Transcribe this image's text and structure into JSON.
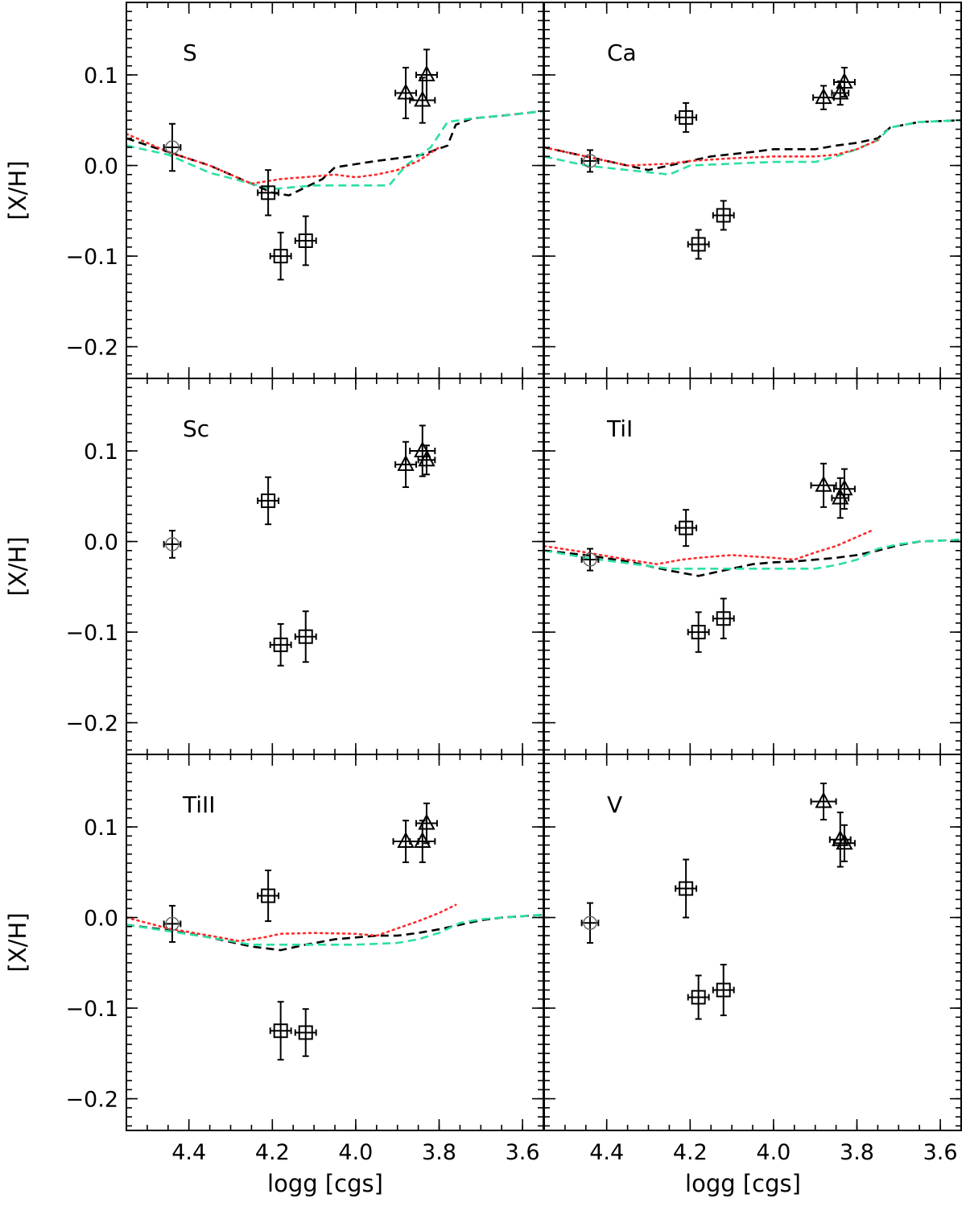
{
  "chart_data": {
    "type": "scatter",
    "xlabel": "logg [cgs]",
    "ylabel": "[X/H]",
    "xlim": [
      4.55,
      3.55
    ],
    "ylim": [
      -0.235,
      0.18
    ],
    "xticks": [
      4.4,
      4.2,
      4.0,
      3.8,
      3.6
    ],
    "xtick_labels": [
      "4.4",
      "4.2",
      "4.0",
      "3.8",
      "3.6"
    ],
    "yticks": [
      0.1,
      0.0,
      -0.1,
      -0.2
    ],
    "ytick_labels": [
      "0.1",
      "0.0",
      "−0.1",
      "−0.2"
    ],
    "line_colors": [
      "#000000",
      "#2be0a0",
      "#ff2a2a"
    ],
    "panels": [
      {
        "label": "S",
        "points": [
          {
            "marker": "circle",
            "x": 4.44,
            "y": 0.02,
            "xerr": 0.02,
            "yerr": 0.026
          },
          {
            "marker": "square",
            "x": 4.21,
            "y": -0.03,
            "xerr": 0.025,
            "yerr": 0.025
          },
          {
            "marker": "square",
            "x": 4.18,
            "y": -0.1,
            "xerr": 0.025,
            "yerr": 0.026
          },
          {
            "marker": "square",
            "x": 4.12,
            "y": -0.083,
            "xerr": 0.025,
            "yerr": 0.027
          },
          {
            "marker": "triangle",
            "x": 3.88,
            "y": 0.08,
            "xerr": 0.025,
            "yerr": 0.028
          },
          {
            "marker": "triangle",
            "x": 3.84,
            "y": 0.072,
            "xerr": 0.03,
            "yerr": 0.025
          },
          {
            "marker": "triangle",
            "x": 3.83,
            "y": 0.1,
            "xerr": 0.025,
            "yerr": 0.028
          }
        ],
        "curves": [
          {
            "style": "dashed",
            "color": "#000000",
            "x": [
              4.55,
              4.45,
              4.35,
              4.25,
              4.2,
              4.16,
              4.08,
              4.05,
              3.95,
              3.9,
              3.84,
              3.78,
              3.76,
              3.72,
              3.65,
              3.55
            ],
            "y": [
              0.03,
              0.015,
              0.0,
              -0.02,
              -0.03,
              -0.033,
              -0.015,
              -0.002,
              0.005,
              0.008,
              0.012,
              0.022,
              0.045,
              0.052,
              0.055,
              0.06
            ]
          },
          {
            "style": "dashed",
            "color": "#2be0a0",
            "x": [
              4.55,
              4.45,
              4.35,
              4.25,
              4.2,
              4.1,
              4.0,
              3.92,
              3.88,
              3.82,
              3.78,
              3.72,
              3.65,
              3.55
            ],
            "y": [
              0.022,
              0.012,
              -0.008,
              -0.02,
              -0.026,
              -0.022,
              -0.022,
              -0.022,
              0.0,
              0.02,
              0.048,
              0.052,
              0.055,
              0.06
            ]
          },
          {
            "style": "dotted",
            "color": "#ff2a2a",
            "x": [
              4.55,
              4.45,
              4.35,
              4.3,
              4.25,
              4.18,
              4.1,
              4.05,
              4.0,
              3.95,
              3.9,
              3.85,
              3.8
            ],
            "y": [
              0.035,
              0.015,
              0.0,
              -0.01,
              -0.02,
              -0.015,
              -0.012,
              -0.01,
              -0.013,
              -0.01,
              -0.005,
              0.005,
              0.02
            ]
          }
        ]
      },
      {
        "label": "Ca",
        "points": [
          {
            "marker": "circle",
            "x": 4.44,
            "y": 0.005,
            "xerr": 0.02,
            "yerr": 0.012
          },
          {
            "marker": "square",
            "x": 4.21,
            "y": 0.053,
            "xerr": 0.025,
            "yerr": 0.016
          },
          {
            "marker": "square",
            "x": 4.18,
            "y": -0.087,
            "xerr": 0.025,
            "yerr": 0.016
          },
          {
            "marker": "square",
            "x": 4.12,
            "y": -0.055,
            "xerr": 0.025,
            "yerr": 0.016
          },
          {
            "marker": "triangle",
            "x": 3.88,
            "y": 0.075,
            "xerr": 0.025,
            "yerr": 0.013
          },
          {
            "marker": "triangle",
            "x": 3.84,
            "y": 0.08,
            "xerr": 0.02,
            "yerr": 0.013
          },
          {
            "marker": "triangle",
            "x": 3.83,
            "y": 0.092,
            "xerr": 0.025,
            "yerr": 0.016
          }
        ],
        "curves": [
          {
            "style": "dashed",
            "color": "#000000",
            "x": [
              4.55,
              4.45,
              4.35,
              4.3,
              4.2,
              4.15,
              4.05,
              4.0,
              3.9,
              3.85,
              3.8,
              3.75,
              3.72,
              3.65,
              3.55
            ],
            "y": [
              0.02,
              0.01,
              0.0,
              -0.005,
              0.005,
              0.01,
              0.015,
              0.018,
              0.018,
              0.022,
              0.025,
              0.03,
              0.042,
              0.048,
              0.05
            ]
          },
          {
            "style": "dashed",
            "color": "#2be0a0",
            "x": [
              4.55,
              4.45,
              4.35,
              4.25,
              4.2,
              4.1,
              4.0,
              3.9,
              3.85,
              3.8,
              3.75,
              3.72,
              3.65,
              3.55
            ],
            "y": [
              0.01,
              0.0,
              -0.005,
              -0.01,
              0.0,
              0.002,
              0.004,
              0.004,
              0.01,
              0.018,
              0.028,
              0.042,
              0.048,
              0.05
            ]
          },
          {
            "style": "dotted",
            "color": "#ff2a2a",
            "x": [
              4.55,
              4.45,
              4.35,
              4.25,
              4.2,
              4.1,
              4.0,
              3.9,
              3.85,
              3.8,
              3.75
            ],
            "y": [
              0.02,
              0.01,
              0.0,
              0.002,
              0.005,
              0.008,
              0.01,
              0.01,
              0.012,
              0.018,
              0.028
            ]
          }
        ]
      },
      {
        "label": "Sc",
        "points": [
          {
            "marker": "circle",
            "x": 4.44,
            "y": -0.003,
            "xerr": 0.02,
            "yerr": 0.015
          },
          {
            "marker": "square",
            "x": 4.21,
            "y": 0.045,
            "xerr": 0.025,
            "yerr": 0.026
          },
          {
            "marker": "square",
            "x": 4.18,
            "y": -0.114,
            "xerr": 0.025,
            "yerr": 0.023
          },
          {
            "marker": "square",
            "x": 4.12,
            "y": -0.105,
            "xerr": 0.025,
            "yerr": 0.028
          },
          {
            "marker": "triangle",
            "x": 3.88,
            "y": 0.085,
            "xerr": 0.025,
            "yerr": 0.025
          },
          {
            "marker": "triangle",
            "x": 3.84,
            "y": 0.1,
            "xerr": 0.03,
            "yerr": 0.028
          },
          {
            "marker": "triangle",
            "x": 3.83,
            "y": 0.09,
            "xerr": 0.02,
            "yerr": 0.016
          }
        ],
        "curves": []
      },
      {
        "label": "TiI",
        "points": [
          {
            "marker": "circle",
            "x": 4.44,
            "y": -0.02,
            "xerr": 0.02,
            "yerr": 0.012
          },
          {
            "marker": "square",
            "x": 4.21,
            "y": 0.015,
            "xerr": 0.025,
            "yerr": 0.02
          },
          {
            "marker": "square",
            "x": 4.18,
            "y": -0.1,
            "xerr": 0.025,
            "yerr": 0.022
          },
          {
            "marker": "square",
            "x": 4.12,
            "y": -0.085,
            "xerr": 0.025,
            "yerr": 0.022
          },
          {
            "marker": "triangle",
            "x": 3.88,
            "y": 0.062,
            "xerr": 0.03,
            "yerr": 0.024
          },
          {
            "marker": "triangle",
            "x": 3.84,
            "y": 0.048,
            "xerr": 0.02,
            "yerr": 0.022
          },
          {
            "marker": "triangle",
            "x": 3.83,
            "y": 0.058,
            "xerr": 0.025,
            "yerr": 0.022
          }
        ],
        "curves": [
          {
            "style": "dashed",
            "color": "#000000",
            "x": [
              4.55,
              4.45,
              4.35,
              4.25,
              4.18,
              4.12,
              4.05,
              4.0,
              3.95,
              3.9,
              3.85,
              3.8,
              3.75,
              3.7,
              3.65,
              3.55
            ],
            "y": [
              -0.01,
              -0.015,
              -0.022,
              -0.032,
              -0.038,
              -0.032,
              -0.025,
              -0.023,
              -0.022,
              -0.02,
              -0.018,
              -0.015,
              -0.01,
              -0.004,
              0.0,
              0.002
            ]
          },
          {
            "style": "dashed",
            "color": "#2be0a0",
            "x": [
              4.55,
              4.45,
              4.35,
              4.25,
              4.2,
              4.1,
              4.0,
              3.9,
              3.85,
              3.8,
              3.75,
              3.7,
              3.65,
              3.55
            ],
            "y": [
              -0.01,
              -0.018,
              -0.024,
              -0.03,
              -0.03,
              -0.03,
              -0.03,
              -0.03,
              -0.026,
              -0.02,
              -0.008,
              -0.003,
              0.0,
              0.002
            ]
          },
          {
            "style": "dotted",
            "color": "#ff2a2a",
            "x": [
              4.55,
              4.45,
              4.35,
              4.28,
              4.22,
              4.18,
              4.1,
              4.0,
              3.95,
              3.9,
              3.85,
              3.8,
              3.76
            ],
            "y": [
              -0.005,
              -0.012,
              -0.02,
              -0.025,
              -0.02,
              -0.018,
              -0.015,
              -0.018,
              -0.02,
              -0.012,
              -0.005,
              0.005,
              0.013
            ]
          }
        ]
      },
      {
        "label": "TiII",
        "points": [
          {
            "marker": "circle",
            "x": 4.44,
            "y": -0.007,
            "xerr": 0.02,
            "yerr": 0.02
          },
          {
            "marker": "square",
            "x": 4.21,
            "y": 0.024,
            "xerr": 0.025,
            "yerr": 0.028
          },
          {
            "marker": "square",
            "x": 4.18,
            "y": -0.125,
            "xerr": 0.025,
            "yerr": 0.032
          },
          {
            "marker": "square",
            "x": 4.12,
            "y": -0.127,
            "xerr": 0.025,
            "yerr": 0.026
          },
          {
            "marker": "triangle",
            "x": 3.88,
            "y": 0.084,
            "xerr": 0.03,
            "yerr": 0.023
          },
          {
            "marker": "triangle",
            "x": 3.84,
            "y": 0.084,
            "xerr": 0.03,
            "yerr": 0.023
          },
          {
            "marker": "triangle",
            "x": 3.83,
            "y": 0.104,
            "xerr": 0.025,
            "yerr": 0.022
          }
        ],
        "curves": [
          {
            "style": "dashed",
            "color": "#000000",
            "x": [
              4.55,
              4.45,
              4.35,
              4.25,
              4.18,
              4.12,
              4.05,
              4.0,
              3.95,
              3.9,
              3.85,
              3.8,
              3.75,
              3.7,
              3.65,
              3.55
            ],
            "y": [
              -0.008,
              -0.014,
              -0.022,
              -0.032,
              -0.036,
              -0.03,
              -0.024,
              -0.022,
              -0.02,
              -0.02,
              -0.017,
              -0.013,
              -0.008,
              -0.003,
              0.0,
              0.003
            ]
          },
          {
            "style": "dashed",
            "color": "#2be0a0",
            "x": [
              4.55,
              4.45,
              4.35,
              4.25,
              4.2,
              4.1,
              4.0,
              3.9,
              3.85,
              3.8,
              3.75,
              3.7,
              3.65,
              3.55
            ],
            "y": [
              -0.008,
              -0.015,
              -0.022,
              -0.03,
              -0.03,
              -0.03,
              -0.03,
              -0.028,
              -0.024,
              -0.017,
              -0.006,
              -0.002,
              0.0,
              0.003
            ]
          },
          {
            "style": "dotted",
            "color": "#ff2a2a",
            "x": [
              4.55,
              4.45,
              4.35,
              4.28,
              4.22,
              4.18,
              4.1,
              4.0,
              3.95,
              3.9,
              3.85,
              3.8,
              3.76
            ],
            "y": [
              0.0,
              -0.012,
              -0.02,
              -0.026,
              -0.022,
              -0.018,
              -0.017,
              -0.018,
              -0.02,
              -0.012,
              -0.004,
              0.005,
              0.014
            ]
          }
        ]
      },
      {
        "label": "V",
        "points": [
          {
            "marker": "circle",
            "x": 4.44,
            "y": -0.006,
            "xerr": 0.02,
            "yerr": 0.022
          },
          {
            "marker": "square",
            "x": 4.21,
            "y": 0.032,
            "xerr": 0.025,
            "yerr": 0.032
          },
          {
            "marker": "square",
            "x": 4.18,
            "y": -0.088,
            "xerr": 0.025,
            "yerr": 0.024
          },
          {
            "marker": "square",
            "x": 4.12,
            "y": -0.08,
            "xerr": 0.025,
            "yerr": 0.028
          },
          {
            "marker": "triangle",
            "x": 3.88,
            "y": 0.128,
            "xerr": 0.03,
            "yerr": 0.02
          },
          {
            "marker": "triangle",
            "x": 3.84,
            "y": 0.086,
            "xerr": 0.025,
            "yerr": 0.03
          },
          {
            "marker": "triangle",
            "x": 3.83,
            "y": 0.082,
            "xerr": 0.025,
            "yerr": 0.02
          }
        ],
        "curves": []
      }
    ]
  }
}
